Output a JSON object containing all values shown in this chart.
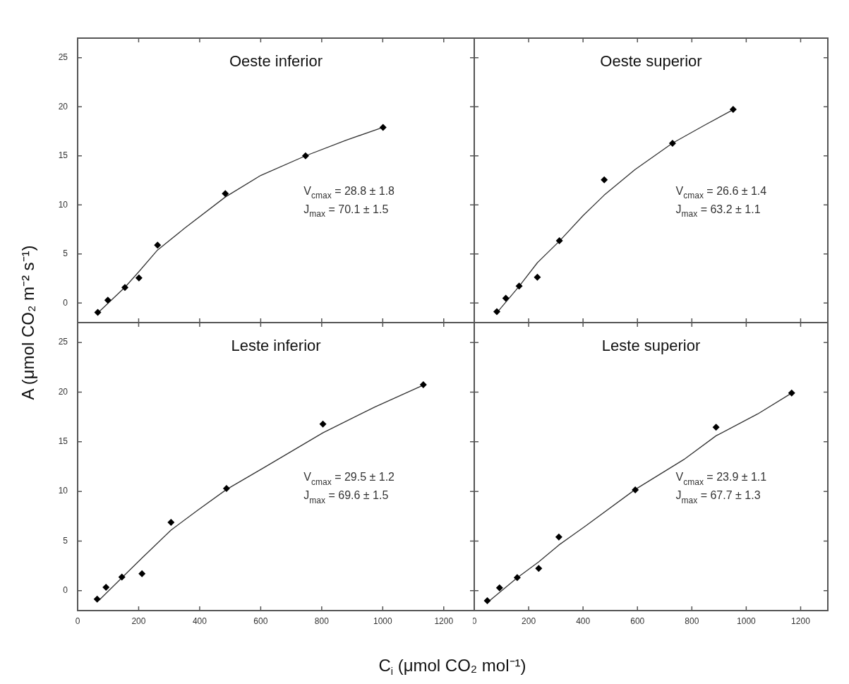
{
  "chart_data": [
    {
      "type": "scatter",
      "title": "Oeste inferior",
      "ylabel": "A (μmol CO₂ m⁻² s⁻¹)",
      "marker": "diamond",
      "tick_labels": "y",
      "xlim": [
        0,
        1300
      ],
      "ylim": [
        -2,
        27
      ],
      "xticks": [
        0,
        200,
        400,
        600,
        800,
        1000,
        1200
      ],
      "yticks": [
        0,
        5,
        10,
        15,
        20,
        25
      ],
      "annotations": [
        "V$_{cmax}$ = 28.8 ± 1.8",
        "J$_{max}$ = 70.1 ± 1.5"
      ],
      "series": [
        {
          "color": "#000000",
          "x": [
            66,
            99,
            155,
            201,
            262,
            484,
            747,
            1001
          ],
          "values": [
            -0.96,
            0.28,
            1.58,
            2.56,
            5.9,
            11.15,
            15.0,
            17.9
          ]
        },
        {
          "type": "line",
          "marker": "none",
          "color": "#333333",
          "x": [
            70,
            155,
            201,
            262,
            350,
            484,
            600,
            747,
            880,
            1001
          ],
          "values": [
            -0.9,
            1.6,
            3.2,
            5.4,
            7.6,
            10.8,
            13.0,
            15.0,
            16.6,
            17.9
          ]
        }
      ]
    },
    {
      "type": "scatter",
      "title": "Oeste superior",
      "marker": "diamond",
      "tick_labels": false,
      "xlim": [
        0,
        1300
      ],
      "ylim": [
        -2,
        27
      ],
      "xticks": [
        0,
        200,
        400,
        600,
        800,
        1000,
        1200
      ],
      "yticks": [
        0,
        5,
        10,
        15,
        20,
        25
      ],
      "annotations": [
        "V$_{cmax}$ = 26.6 ± 1.4",
        "J$_{max}$ = 63.2 ± 1.1"
      ],
      "series": [
        {
          "color": "#000000",
          "x": [
            83,
            116,
            165,
            232,
            313,
            478,
            729,
            952
          ],
          "values": [
            -0.89,
            0.48,
            1.72,
            2.63,
            6.34,
            12.56,
            16.27,
            19.74
          ]
        },
        {
          "type": "line",
          "marker": "none",
          "color": "#333333",
          "x": [
            83,
            165,
            232,
            313,
            400,
            478,
            591,
            729,
            852,
            952
          ],
          "values": [
            -1.0,
            1.7,
            4.1,
            6.3,
            8.9,
            11.0,
            13.6,
            16.3,
            18.2,
            19.7
          ]
        }
      ]
    },
    {
      "type": "scatter",
      "title": "Leste inferior",
      "xlabel": "C$_{i}$ (μmol CO₂ mol⁻¹)",
      "marker": "diamond",
      "xlim": [
        0,
        1300
      ],
      "ylim": [
        -2,
        27
      ],
      "xticks": [
        0,
        200,
        400,
        600,
        800,
        1000,
        1200
      ],
      "yticks": [
        0,
        5,
        10,
        15,
        20,
        25
      ],
      "annotations": [
        "V$_{cmax}$ = 29.5 ± 1.2",
        "J$_{max}$ = 69.6 ± 1.5"
      ],
      "series": [
        {
          "color": "#000000",
          "x": [
            64,
            93,
            145,
            211,
            306,
            488,
            804,
            1133
          ],
          "values": [
            -0.84,
            0.34,
            1.38,
            1.72,
            6.89,
            10.29,
            16.79,
            20.75
          ]
        },
        {
          "type": "line",
          "marker": "none",
          "color": "#333333",
          "x": [
            71,
            145,
            211,
            306,
            393,
            488,
            611,
            804,
            974,
            1133
          ],
          "values": [
            -0.93,
            1.3,
            3.3,
            6.1,
            8.1,
            10.2,
            12.4,
            15.9,
            18.5,
            20.7
          ]
        }
      ]
    },
    {
      "type": "scatter",
      "title": "Leste superior",
      "marker": "diamond",
      "tick_labels": "x",
      "xlim": [
        0,
        1300
      ],
      "ylim": [
        -2,
        27
      ],
      "xticks": [
        0,
        200,
        400,
        600,
        800,
        1000,
        1200
      ],
      "yticks": [
        0,
        5,
        10,
        15,
        20,
        25
      ],
      "annotations": [
        "V$_{cmax}$ = 23.9 ± 1.1",
        "J$_{max}$ = 67.7 ± 1.3"
      ],
      "series": [
        {
          "color": "#000000",
          "x": [
            48,
            93,
            158,
            237,
            311,
            592,
            889,
            1167
          ],
          "values": [
            -1.0,
            0.3,
            1.32,
            2.25,
            5.41,
            10.15,
            16.47,
            19.91
          ]
        },
        {
          "type": "line",
          "marker": "none",
          "color": "#333333",
          "x": [
            54,
            158,
            237,
            311,
            408,
            592,
            770,
            889,
            1042,
            1167
          ],
          "values": [
            -1.05,
            1.3,
            2.9,
            4.6,
            6.5,
            10.2,
            13.2,
            15.6,
            17.8,
            19.9
          ]
        }
      ]
    }
  ]
}
